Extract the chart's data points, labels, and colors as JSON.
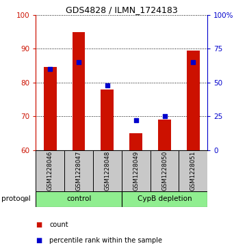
{
  "title": "GDS4828 / ILMN_1724183",
  "samples": [
    "GSM1228046",
    "GSM1228047",
    "GSM1228048",
    "GSM1228049",
    "GSM1228050",
    "GSM1228051"
  ],
  "red_values": [
    84.5,
    95.0,
    78.0,
    65.0,
    69.0,
    89.5
  ],
  "blue_pct": [
    60,
    65,
    48,
    22,
    25,
    65
  ],
  "ylim_left": [
    60,
    100
  ],
  "ylim_right": [
    0,
    100
  ],
  "yticks_left": [
    60,
    70,
    80,
    90,
    100
  ],
  "yticks_right": [
    0,
    25,
    50,
    75,
    100
  ],
  "ytick_right_labels": [
    "0",
    "25",
    "50",
    "75",
    "100%"
  ],
  "red_color": "#CC1100",
  "blue_color": "#0000CC",
  "bar_width": 0.45,
  "gray_bg": "#C8C8C8",
  "green_bg": "#90EE90",
  "control_label": "control",
  "cypb_label": "CypB depletion",
  "protocol_text": "protocol",
  "legend_red": "count",
  "legend_blue": "percentile rank within the sample"
}
